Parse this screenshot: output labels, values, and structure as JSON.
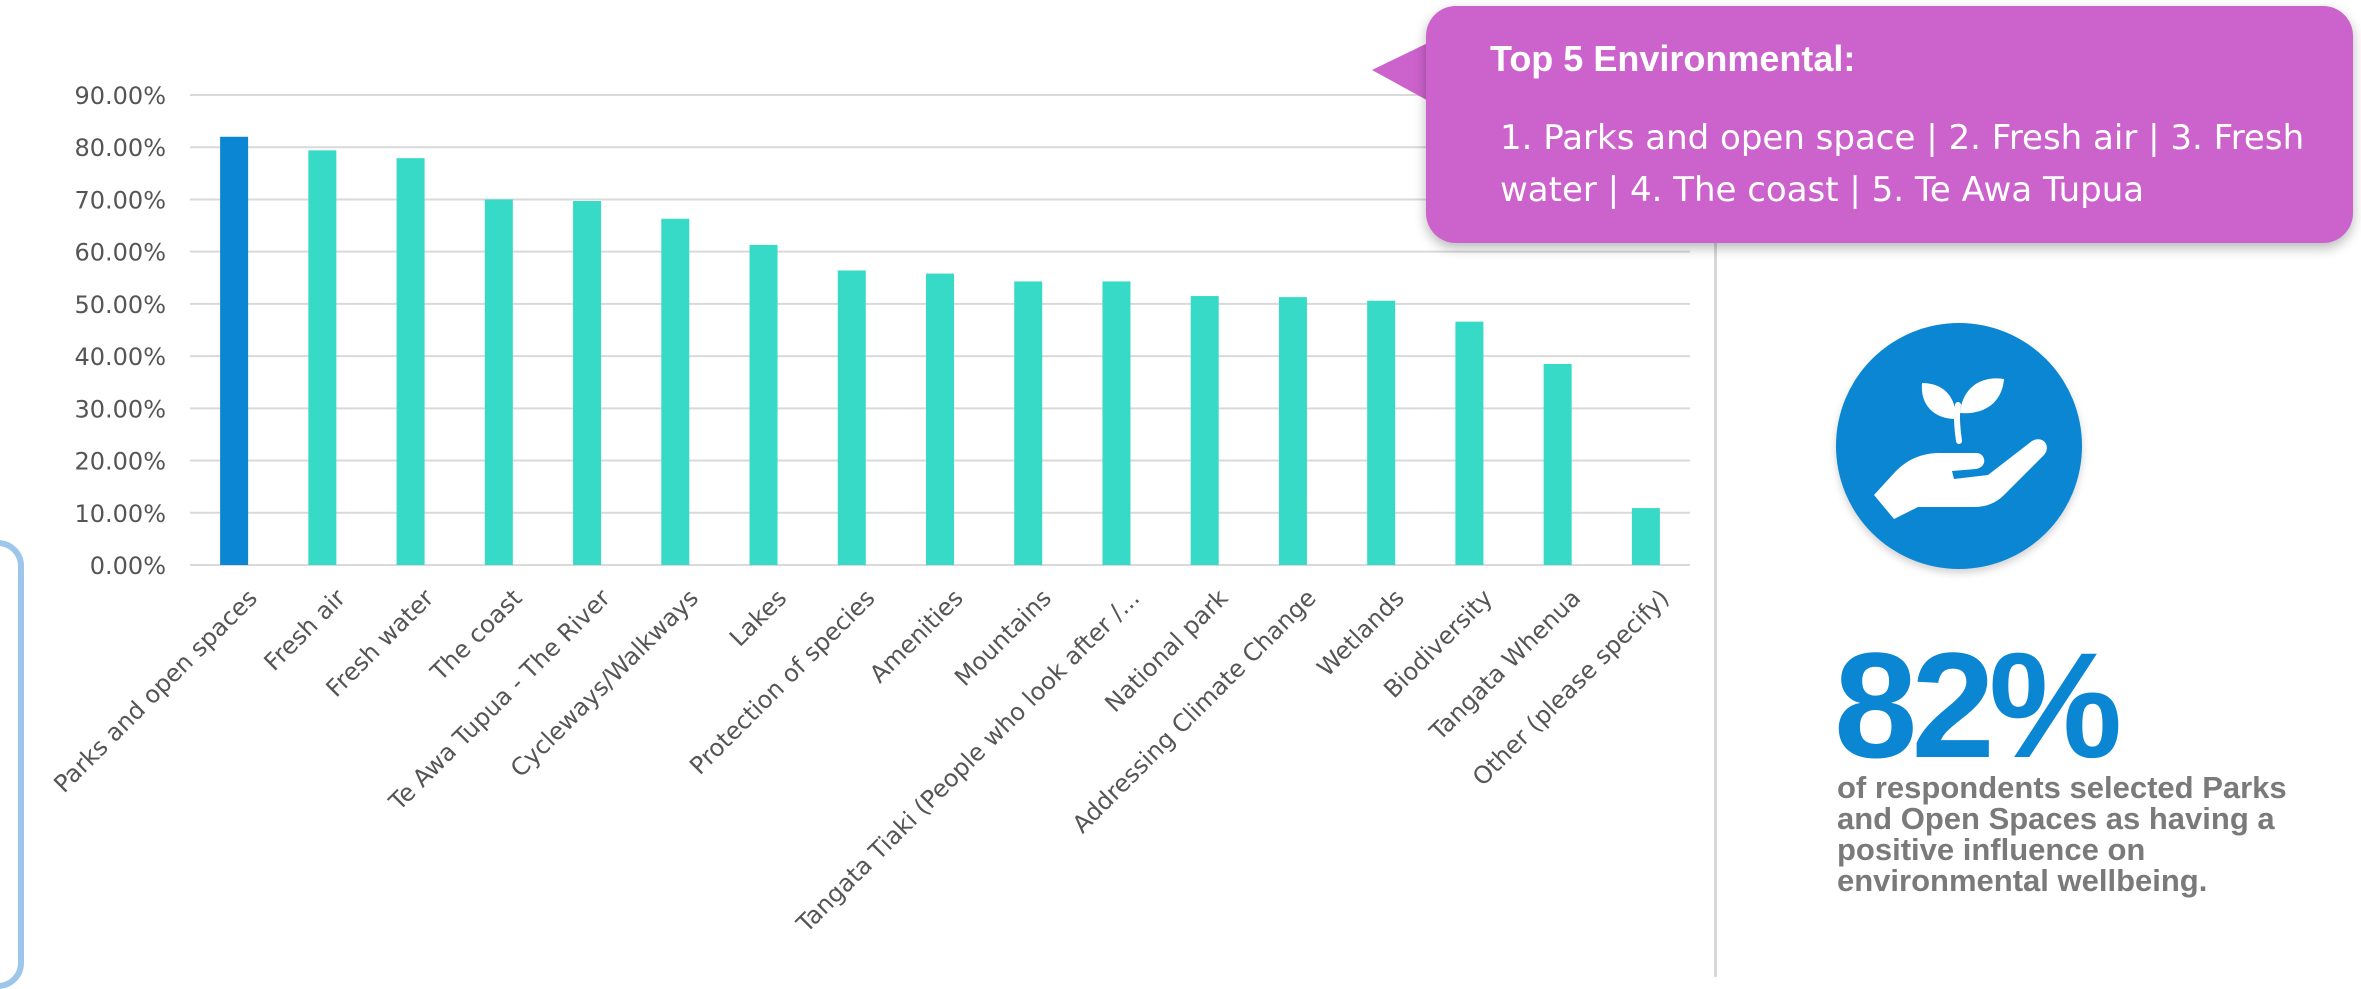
{
  "chart_data": {
    "type": "bar",
    "categories": [
      "Parks and open spaces",
      "Fresh air",
      "Fresh water",
      "The coast",
      "Te Awa Tupua - The River",
      "Cycleways/Walkways",
      "Lakes",
      "Protection of species",
      "Amenities",
      "Mountains",
      "Tangata Tiaki (People who look after /...",
      "National park",
      "Addressing Climate Change",
      "Wetlands",
      "Biodiversity",
      "Tangata Whenua",
      "Other (please specify)"
    ],
    "values": [
      82.0,
      79.4,
      77.9,
      70.0,
      69.7,
      66.3,
      61.3,
      56.4,
      55.8,
      54.3,
      54.3,
      51.5,
      51.3,
      50.6,
      46.6,
      38.5,
      10.9
    ],
    "highlight_index": 0,
    "colors": {
      "highlight": "#0a86d2",
      "bar": "#36dac6",
      "grid": "#d9d9d9"
    },
    "yticks": [
      "0.00%",
      "10.00%",
      "20.00%",
      "30.00%",
      "40.00%",
      "50.00%",
      "60.00%",
      "70.00%",
      "80.00%",
      "90.00%"
    ],
    "ylim": [
      0,
      90
    ],
    "grid": true
  },
  "callout": {
    "title": "Top 5 Environmental:",
    "body": "1. Parks and open space | 2. Fresh air | 3. Fresh water | 4. The coast | 5. Te Awa Tupua",
    "color": "#cc62cc"
  },
  "stat": {
    "value": "82%",
    "caption": "of respondents selected Parks and Open Spaces as having a positive influence on environmental wellbeing.",
    "icon": "hand-with-plant-icon",
    "color": "#0a86d2"
  }
}
